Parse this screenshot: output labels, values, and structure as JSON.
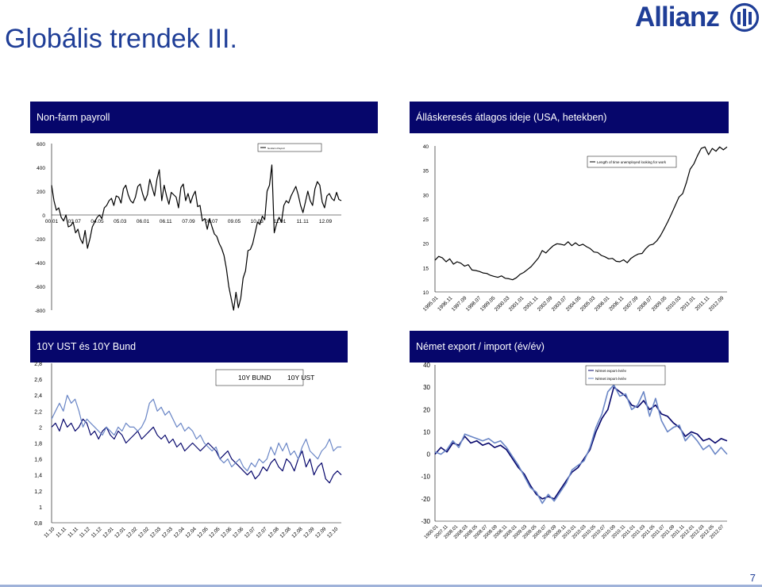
{
  "slide": {
    "title": "Globális trendek III.",
    "logo_text": "Allianz",
    "page_number": "7",
    "colors": {
      "title": "#1f3e97",
      "header_bg": "#06066b",
      "header_text": "#ffffff"
    }
  },
  "chart_data": [
    {
      "id": "nfp",
      "header": "Non-farm payroll",
      "type": "line",
      "ylim": [
        -800,
        600
      ],
      "yticks": [
        "600",
        "400",
        "200",
        "0",
        "-200",
        "-400",
        "-600",
        "-800"
      ],
      "xticks": [
        "00.01",
        "03.07",
        "04.05",
        "05.03",
        "06.01",
        "06.11",
        "07.09",
        "08.07",
        "09.05",
        "10.03",
        "11.01",
        "11.11",
        "12.09"
      ],
      "legend": [
        "Nonfarm Payroll"
      ],
      "grid": false,
      "series": [
        {
          "color": "#000000",
          "values": [
            250,
            120,
            40,
            60,
            -20,
            -50,
            0,
            -100,
            -90,
            -60,
            -150,
            -120,
            -200,
            -240,
            -130,
            -280,
            -200,
            -100,
            -60,
            -20,
            0,
            -30,
            60,
            80,
            120,
            140,
            80,
            160,
            150,
            100,
            220,
            250,
            170,
            120,
            100,
            150,
            240,
            260,
            180,
            120,
            170,
            300,
            230,
            160,
            300,
            380,
            120,
            250,
            160,
            90,
            190,
            170,
            150,
            60,
            230,
            260,
            120,
            180,
            100,
            160,
            200,
            70,
            80,
            -50,
            -30,
            -120,
            -30,
            -100,
            -160,
            -180,
            -240,
            -280,
            -340,
            -450,
            -600,
            -700,
            -800,
            -650,
            -780,
            -700,
            -530,
            -470,
            -300,
            -290,
            -240,
            -150,
            -60,
            -80,
            -10,
            -40,
            200,
            250,
            420,
            -150,
            -70,
            -20,
            -60,
            80,
            120,
            100,
            160,
            200,
            240,
            170,
            80,
            20,
            110,
            200,
            120,
            80,
            220,
            280,
            250,
            110,
            60,
            160,
            180,
            140,
            120,
            190,
            130,
            120
          ]
        }
      ]
    },
    {
      "id": "unemp",
      "header": "Álláskeresés átlagos ideje (USA, hetekben)",
      "type": "line",
      "ylim": [
        10,
        40
      ],
      "yticks": [
        "40",
        "35",
        "30",
        "25",
        "20",
        "15",
        "10"
      ],
      "xticks": [
        "1995.01",
        "1996.11",
        "1997.09",
        "1998.07",
        "1999.05",
        "2000.03",
        "2001.01",
        "2001.11",
        "2002.09",
        "2003.07",
        "2004.05",
        "2005.03",
        "2006.01",
        "2006.11",
        "2007.09",
        "2008.07",
        "2009.05",
        "2010.03",
        "2011.01",
        "2011.11",
        "2012.09"
      ],
      "legend": [
        "Length of time unemployed looking for work"
      ],
      "grid": false,
      "series": [
        {
          "color": "#000000",
          "values": [
            16.5,
            17.3,
            17.0,
            16.2,
            16.8,
            15.7,
            16.2,
            15.9,
            15.3,
            15.6,
            14.5,
            14.4,
            14.2,
            13.9,
            13.8,
            13.4,
            13.2,
            13.0,
            13.3,
            12.8,
            12.7,
            12.5,
            12.9,
            13.6,
            14.0,
            14.6,
            15.2,
            16.1,
            17.0,
            18.5,
            18.0,
            18.8,
            19.5,
            19.9,
            19.8,
            19.6,
            20.3,
            19.5,
            20.1,
            19.5,
            19.8,
            19.3,
            18.9,
            18.2,
            18.1,
            17.5,
            17.2,
            16.8,
            16.9,
            16.3,
            16.2,
            16.6,
            16.0,
            16.9,
            17.4,
            17.8,
            17.9,
            18.9,
            19.6,
            19.8,
            20.5,
            21.6,
            23.0,
            24.5,
            26.1,
            27.8,
            29.5,
            30.2,
            32.5,
            35.2,
            36.3,
            38.0,
            39.5,
            39.8,
            38.2,
            39.5,
            38.9,
            39.8,
            39.2,
            39.8
          ]
        }
      ]
    },
    {
      "id": "ust_bund",
      "header": "10Y UST és 10Y Bund",
      "type": "line",
      "ylim": [
        0.8,
        2.8
      ],
      "yticks": [
        "2,8",
        "2,6",
        "2,4",
        "2,2",
        "2",
        "1,8",
        "1,6",
        "1,4",
        "1,2",
        "1",
        "0,8"
      ],
      "xticks": [
        "11.10",
        "11.11",
        "11.11",
        "11.12",
        "11.12",
        "12.01",
        "12.01",
        "12.02",
        "12.02",
        "12.03",
        "12.03",
        "12.04",
        "12.04",
        "12.05",
        "12.05",
        "12.06",
        "12.06",
        "12.07",
        "12.07",
        "12.08",
        "12.08",
        "12.08",
        "12.09",
        "12.09",
        "12.10"
      ],
      "legend": [
        "10Y BUND",
        "10Y UST"
      ],
      "grid": false,
      "series": [
        {
          "name": "10Y BUND",
          "color": "#06066b",
          "values": [
            2.0,
            2.05,
            1.95,
            2.1,
            2.0,
            2.05,
            1.95,
            2.0,
            2.1,
            2.05,
            1.9,
            1.95,
            1.85,
            1.95,
            2.0,
            1.9,
            1.85,
            1.95,
            1.9,
            1.8,
            1.85,
            1.9,
            1.95,
            1.85,
            1.9,
            1.95,
            2.0,
            1.9,
            1.85,
            1.9,
            1.8,
            1.85,
            1.75,
            1.8,
            1.7,
            1.75,
            1.8,
            1.75,
            1.7,
            1.75,
            1.8,
            1.75,
            1.7,
            1.6,
            1.65,
            1.7,
            1.6,
            1.55,
            1.5,
            1.45,
            1.4,
            1.45,
            1.35,
            1.4,
            1.5,
            1.45,
            1.55,
            1.6,
            1.5,
            1.45,
            1.6,
            1.55,
            1.45,
            1.6,
            1.7,
            1.5,
            1.6,
            1.4,
            1.5,
            1.55,
            1.35,
            1.3,
            1.4,
            1.45,
            1.4
          ]
        },
        {
          "name": "10Y UST",
          "color": "#6a86c6",
          "values": [
            2.1,
            2.2,
            2.3,
            2.2,
            2.4,
            2.3,
            2.35,
            2.2,
            2.0,
            2.1,
            2.05,
            2.0,
            1.95,
            1.9,
            2.0,
            1.95,
            1.9,
            2.0,
            1.95,
            2.05,
            2.0,
            2.0,
            1.95,
            2.0,
            2.1,
            2.3,
            2.35,
            2.2,
            2.25,
            2.15,
            2.2,
            2.1,
            2.0,
            2.05,
            1.95,
            2.0,
            1.95,
            1.85,
            1.9,
            1.8,
            1.75,
            1.7,
            1.75,
            1.6,
            1.55,
            1.6,
            1.5,
            1.55,
            1.6,
            1.5,
            1.45,
            1.55,
            1.5,
            1.6,
            1.55,
            1.6,
            1.75,
            1.65,
            1.8,
            1.7,
            1.8,
            1.65,
            1.7,
            1.6,
            1.75,
            1.85,
            1.7,
            1.65,
            1.6,
            1.7,
            1.75,
            1.85,
            1.7,
            1.75,
            1.75
          ]
        }
      ]
    },
    {
      "id": "de_trade",
      "header": "Német export / import (év/év)",
      "type": "line",
      "ylim": [
        -30,
        40
      ],
      "yticks": [
        "40",
        "30",
        "20",
        "10",
        "0",
        "-10",
        "-20",
        "-30"
      ],
      "xticks": [
        "1900.01",
        "2007.11",
        "2008.01",
        "2008.03",
        "2008.05",
        "2008.07",
        "2008.09",
        "2008.11",
        "2009.01",
        "2009.03",
        "2009.05",
        "2009.07",
        "2009.09",
        "2009.11",
        "2010.01",
        "2010.03",
        "2010.05",
        "2010.07",
        "2010.09",
        "2010.11",
        "2011.01",
        "2011.03",
        "2011.05",
        "2011.07",
        "2011.09",
        "2011.11",
        "2012.01",
        "2012.03",
        "2012.05",
        "2012.07"
      ],
      "legend": [
        "Német export év/év",
        "Német import év/év"
      ],
      "grid": false,
      "series": [
        {
          "name": "Német export év/év",
          "color": "#06066b",
          "values": [
            0,
            3,
            1,
            5,
            4,
            8,
            5,
            6,
            4,
            5,
            3,
            4,
            2,
            -2,
            -6,
            -9,
            -14,
            -18,
            -20,
            -19,
            -20,
            -16,
            -12,
            -8,
            -6,
            -2,
            2,
            10,
            16,
            20,
            30,
            28,
            26,
            22,
            21,
            24,
            20,
            22,
            18,
            17,
            14,
            12,
            8,
            10,
            9,
            6,
            7,
            5,
            7,
            6
          ]
        },
        {
          "name": "Német import év/év",
          "color": "#6a86c6",
          "values": [
            1,
            0,
            2,
            6,
            3,
            9,
            8,
            7,
            6,
            7,
            5,
            6,
            3,
            -1,
            -5,
            -10,
            -15,
            -17,
            -22,
            -18,
            -21,
            -17,
            -13,
            -7,
            -5,
            -3,
            3,
            12,
            18,
            28,
            31,
            26,
            27,
            20,
            22,
            28,
            17,
            25,
            15,
            10,
            12,
            13,
            6,
            9,
            6,
            2,
            4,
            0,
            3,
            0
          ]
        }
      ]
    }
  ]
}
